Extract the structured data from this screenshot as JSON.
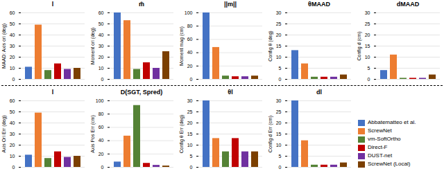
{
  "chart_data": [
    {
      "type": "bar",
      "title": "l",
      "ylabel": "MAAD: Axis ori (deg)",
      "categories": [
        "Abbatematteo et al.",
        "ScrewNet",
        "vm-SoftOrtho",
        "Direct-F",
        "DUST-net",
        "ScrewNet (Local)"
      ],
      "values": [
        11,
        49,
        8,
        14,
        9,
        10
      ],
      "colors": [
        "#4472C4",
        "#ED7D31",
        "#548235",
        "#C00000",
        "#7030A0",
        "#7B3F00"
      ],
      "ylim": [
        0,
        60
      ],
      "yticks": [
        0,
        10,
        20,
        30,
        40,
        50,
        60
      ],
      "grid": true,
      "tick_labels": "y"
    },
    {
      "type": "bar",
      "title": "m̂",
      "ylabel": "Moment ori (deg)",
      "categories": [
        "Abbatematteo et al.",
        "ScrewNet",
        "vm-SoftOrtho",
        "Direct-F",
        "DUST-net",
        "ScrewNet (Local)"
      ],
      "values": [
        60,
        53,
        9,
        15,
        10,
        25
      ],
      "colors": [
        "#4472C4",
        "#ED7D31",
        "#548235",
        "#C00000",
        "#7030A0",
        "#7B3F00"
      ],
      "ylim": [
        0,
        60
      ],
      "yticks": [
        0,
        10,
        20,
        30,
        40,
        50,
        60
      ],
      "grid": true,
      "tick_labels": "y"
    },
    {
      "type": "bar",
      "title": "||m||",
      "ylabel": "Moment mag (cm)",
      "categories": [
        "Abbatematteo et al.",
        "ScrewNet",
        "vm-SoftOrtho",
        "Direct-F",
        "DUST-net",
        "ScrewNet (Local)"
      ],
      "values": [
        100,
        48,
        5,
        4,
        4,
        5
      ],
      "colors": [
        "#4472C4",
        "#ED7D31",
        "#548235",
        "#C00000",
        "#7030A0",
        "#7B3F00"
      ],
      "ylim": [
        0,
        100
      ],
      "yticks": [
        0,
        20,
        40,
        60,
        80,
        100
      ],
      "grid": true,
      "tick_labels": "y"
    },
    {
      "type": "bar",
      "title": "θMAAD",
      "ylabel": "Config θ (deg)",
      "categories": [
        "Abbatematteo et al.",
        "ScrewNet",
        "vm-SoftOrtho",
        "Direct-F",
        "DUST-net",
        "ScrewNet (Local)"
      ],
      "values": [
        13,
        7,
        1,
        1,
        1,
        2
      ],
      "colors": [
        "#4472C4",
        "#ED7D31",
        "#548235",
        "#C00000",
        "#7030A0",
        "#7B3F00"
      ],
      "ylim": [
        0,
        30
      ],
      "yticks": [
        0,
        5,
        10,
        15,
        20,
        25,
        30
      ],
      "grid": true,
      "tick_labels": "y"
    },
    {
      "type": "bar",
      "title": "dMAAD",
      "ylabel": "Config d (cm)",
      "categories": [
        "Abbatematteo et al.",
        "ScrewNet",
        "vm-SoftOrtho",
        "Direct-F",
        "DUST-net",
        "ScrewNet (Local)"
      ],
      "values": [
        4,
        11,
        0.5,
        0.5,
        0.5,
        2
      ],
      "colors": [
        "#4472C4",
        "#ED7D31",
        "#548235",
        "#C00000",
        "#7030A0",
        "#7B3F00"
      ],
      "ylim": [
        0,
        30
      ],
      "yticks": [
        0,
        5,
        10,
        15,
        20,
        25,
        30
      ],
      "grid": true,
      "tick_labels": "y"
    },
    {
      "type": "bar",
      "title": "l",
      "ylabel": "Axis Ori Err (deg)",
      "categories": [
        "Abbatematteo et al.",
        "ScrewNet",
        "vm-SoftOrtho",
        "Direct-F",
        "DUST-net",
        "ScrewNet (Local)"
      ],
      "values": [
        11,
        49,
        8,
        14,
        9,
        10
      ],
      "colors": [
        "#4472C4",
        "#ED7D31",
        "#548235",
        "#C00000",
        "#7030A0",
        "#7B3F00"
      ],
      "ylim": [
        0,
        60
      ],
      "yticks": [
        0,
        10,
        20,
        30,
        40,
        50,
        60
      ],
      "grid": true,
      "tick_labels": "y"
    },
    {
      "type": "bar",
      "title": "D(SGT, Spred)",
      "ylabel": "Axis Pos Err (cm)",
      "categories": [
        "Abbatematteo et al.",
        "ScrewNet",
        "vm-SoftOrtho",
        "Direct-F",
        "DUST-net",
        "ScrewNet (Local)"
      ],
      "values": [
        8,
        47,
        93,
        6,
        3,
        2
      ],
      "colors": [
        "#4472C4",
        "#ED7D31",
        "#548235",
        "#C00000",
        "#7030A0",
        "#7B3F00"
      ],
      "ylim": [
        0,
        100
      ],
      "yticks": [
        0,
        20,
        40,
        60,
        80,
        100
      ],
      "grid": true,
      "tick_labels": "y"
    },
    {
      "type": "bar",
      "title": "θl",
      "ylabel": "Config θ Err (deg)",
      "categories": [
        "Abbatematteo et al.",
        "ScrewNet",
        "vm-SoftOrtho",
        "Direct-F",
        "DUST-net",
        "ScrewNet (Local)"
      ],
      "values": [
        30,
        13,
        7,
        13,
        7,
        7
      ],
      "colors": [
        "#4472C4",
        "#ED7D31",
        "#548235",
        "#C00000",
        "#7030A0",
        "#7B3F00"
      ],
      "ylim": [
        0,
        30
      ],
      "yticks": [
        0,
        5,
        10,
        15,
        20,
        25,
        30
      ],
      "grid": true,
      "tick_labels": "y"
    },
    {
      "type": "bar",
      "title": "dl",
      "ylabel": "Config d Err (cm)",
      "categories": [
        "Abbatematteo et al.",
        "ScrewNet",
        "vm-SoftOrtho",
        "Direct-F",
        "DUST-net",
        "ScrewNet (Local)"
      ],
      "values": [
        30,
        12,
        1,
        1,
        1,
        2
      ],
      "colors": [
        "#4472C4",
        "#ED7D31",
        "#548235",
        "#C00000",
        "#7030A0",
        "#7B3F00"
      ],
      "ylim": [
        0,
        30
      ],
      "yticks": [
        0,
        5,
        10,
        15,
        20,
        25,
        30
      ],
      "grid": true,
      "tick_labels": "y",
      "legend": "lower right"
    }
  ]
}
